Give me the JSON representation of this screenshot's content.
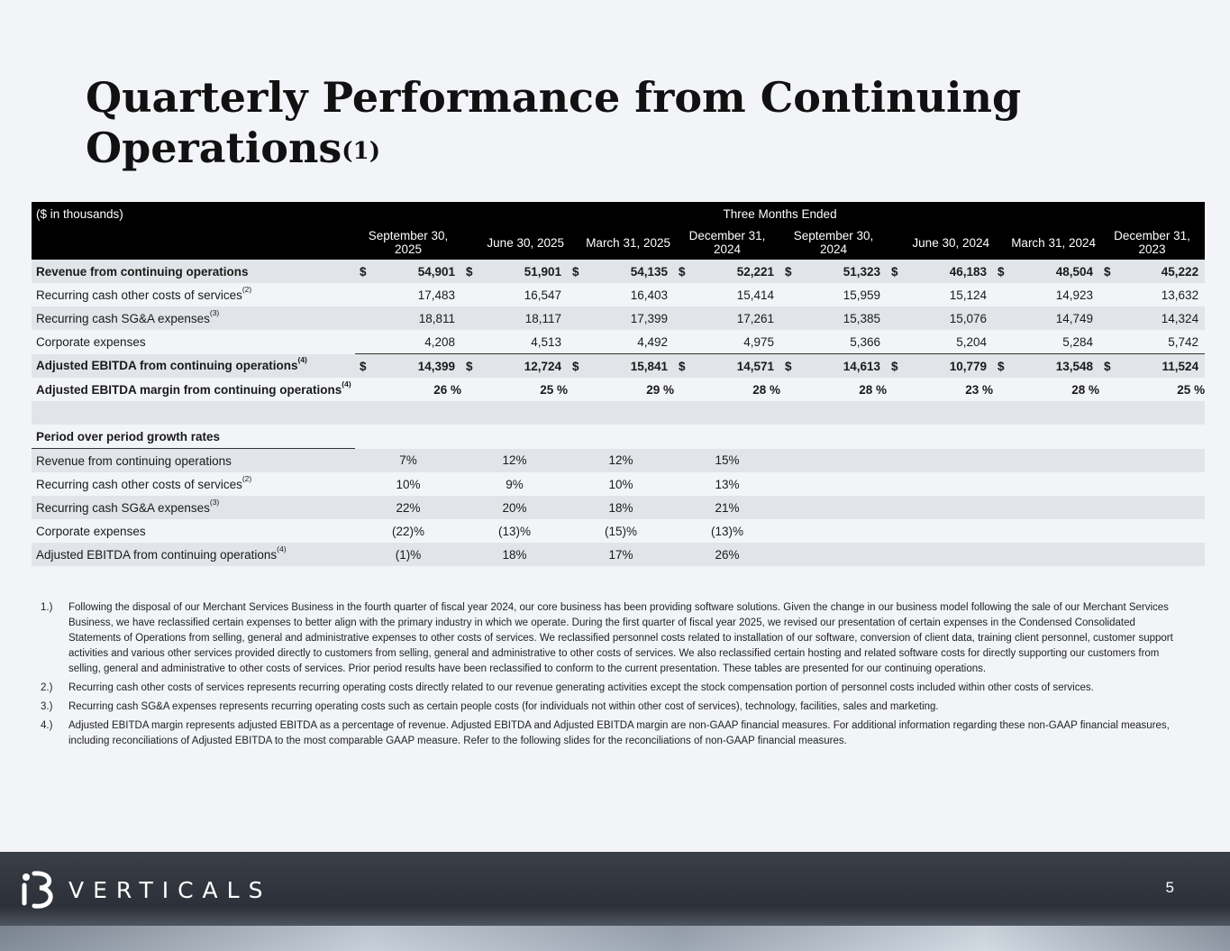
{
  "title": {
    "text": "Quarterly Performance from Continuing Operations",
    "sup": "(1)"
  },
  "table": {
    "units_label": "($ in thousands)",
    "group_header": "Three Months Ended",
    "columns": [
      "September 30, 2025",
      "June 30, 2025",
      "March 31, 2025",
      "December 31, 2024",
      "September 30, 2024",
      "June 30, 2024",
      "March 31, 2024",
      "December 31, 2023"
    ],
    "currency": "$",
    "rows": [
      {
        "label": "Revenue from continuing operations",
        "sup": "",
        "values": [
          "54,901",
          "51,901",
          "54,135",
          "52,221",
          "51,323",
          "46,183",
          "48,504",
          "45,222"
        ]
      },
      {
        "label": "Recurring cash other costs of services",
        "sup": "(2)",
        "values": [
          "17,483",
          "16,547",
          "16,403",
          "15,414",
          "15,959",
          "15,124",
          "14,923",
          "13,632"
        ]
      },
      {
        "label": "Recurring cash SG&A expenses",
        "sup": "(3)",
        "values": [
          "18,811",
          "18,117",
          "17,399",
          "17,261",
          "15,385",
          "15,076",
          "14,749",
          "14,324"
        ]
      },
      {
        "label": "Corporate expenses",
        "sup": "",
        "values": [
          "4,208",
          "4,513",
          "4,492",
          "4,975",
          "5,366",
          "5,204",
          "5,284",
          "5,742"
        ]
      },
      {
        "label": "Adjusted EBITDA from continuing operations",
        "sup": "(4)",
        "values": [
          "14,399",
          "12,724",
          "15,841",
          "14,571",
          "14,613",
          "10,779",
          "13,548",
          "11,524"
        ]
      },
      {
        "label": "Adjusted EBITDA margin from continuing operations",
        "sup": "(4)",
        "values": [
          "26 %",
          "25 %",
          "29 %",
          "28 %",
          "28 %",
          "23 %",
          "28 %",
          "25 %"
        ]
      }
    ],
    "growth_title": "Period over period growth rates",
    "growth_rows": [
      {
        "label": "Revenue from continuing operations",
        "sup": "",
        "values": [
          "7%",
          "12%",
          "12%",
          "15%"
        ]
      },
      {
        "label": "Recurring cash other costs of services",
        "sup": "(2)",
        "values": [
          "10%",
          "9%",
          "10%",
          "13%"
        ]
      },
      {
        "label": "Recurring cash SG&A expenses",
        "sup": "(3)",
        "values": [
          "22%",
          "20%",
          "18%",
          "21%"
        ]
      },
      {
        "label": "Corporate expenses",
        "sup": "",
        "values": [
          "(22)%",
          "(13)%",
          "(15)%",
          "(13)%"
        ]
      },
      {
        "label": "Adjusted EBITDA from continuing operations",
        "sup": "(4)",
        "values": [
          "(1)%",
          "18%",
          "17%",
          "26%"
        ]
      }
    ]
  },
  "footnotes": [
    {
      "num": "1.)",
      "text": "Following the disposal of our Merchant Services Business in the fourth quarter of fiscal year 2024, our core business has been providing software solutions. Given the change in our business model following the sale of our Merchant Services Business, we have reclassified certain expenses to better align with the primary industry in which we operate. During the first quarter of fiscal year 2025, we revised our presentation of certain expenses in the Condensed Consolidated Statements of Operations from selling, general and administrative expenses to other costs of services. We reclassified personnel costs related to installation of our software, conversion of client data, training client personnel, customer support activities and various other services provided directly to customers from selling, general and administrative to other costs of services. We also reclassified certain hosting and related software costs for directly supporting our customers from selling, general and administrative to other costs of services. Prior period results have been reclassified to conform to the current presentation. These tables are presented for our continuing operations."
    },
    {
      "num": "2.)",
      "text": "Recurring cash other costs of services represents recurring operating costs directly related to our revenue generating activities except the stock compensation portion of personnel costs included within other costs of services."
    },
    {
      "num": "3.)",
      "text": "Recurring cash SG&A expenses represents recurring operating costs such as certain people costs (for individuals not within other cost of services), technology, facilities, sales and marketing."
    },
    {
      "num": "4.)",
      "text": "Adjusted EBITDA margin represents adjusted EBITDA as a percentage of revenue. Adjusted EBITDA and Adjusted EBITDA margin are non-GAAP financial measures. For additional information regarding these non-GAAP financial measures, including reconciliations of Adjusted EBITDA to the most comparable GAAP measure. Refer to the following slides for the reconciliations of non-GAAP financial measures."
    }
  ],
  "footer": {
    "logo_mark": "i3",
    "logo_text": "VERTICALS",
    "page": "5"
  },
  "colors": {
    "header_bg": "#000000",
    "shaded_row": "#e1e4e8",
    "page_bg": "#f2f4f8"
  }
}
